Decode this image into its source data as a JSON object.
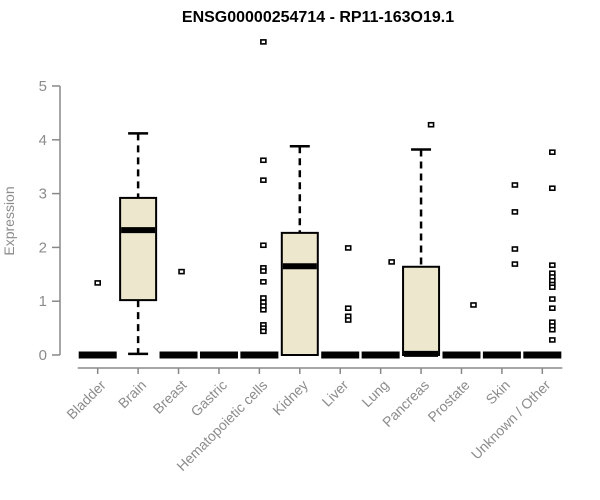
{
  "chart_data": {
    "type": "boxplot",
    "title": "ENSG00000254714 - RP11-163O19.1",
    "ylabel": "Expression",
    "xlabel": "",
    "ylim": [
      0,
      5
    ],
    "yticks": [
      0,
      1,
      2,
      3,
      4,
      5
    ],
    "grid": false,
    "legend": "none",
    "categories": [
      "Bladder",
      "Brain",
      "Breast",
      "Gastric",
      "Hematopoietic cells",
      "Kidney",
      "Liver",
      "Lung",
      "Pancreas",
      "Prostate",
      "Skin",
      "Unknown / Other"
    ],
    "boxes": [
      {
        "category": "Bladder",
        "q1": 0,
        "median": 0,
        "q3": 0,
        "whisker_low": 0,
        "whisker_high": 0,
        "outliers": [
          1.34
        ],
        "outlier_dx": 0
      },
      {
        "category": "Brain",
        "q1": 1.02,
        "median": 2.32,
        "q3": 2.92,
        "whisker_low": 0.02,
        "whisker_high": 4.12,
        "outliers": [],
        "outlier_dx": 0
      },
      {
        "category": "Breast",
        "q1": 0,
        "median": 0,
        "q3": 0,
        "whisker_low": 0,
        "whisker_high": 0,
        "outliers": [
          1.55
        ],
        "outlier_dx": 3
      },
      {
        "category": "Gastric",
        "q1": 0,
        "median": 0,
        "q3": 0,
        "whisker_low": 0,
        "whisker_high": 0,
        "outliers": [],
        "outlier_dx": 0
      },
      {
        "category": "Hematopoietic cells",
        "q1": 0,
        "median": 0,
        "q3": 0,
        "whisker_low": 0,
        "whisker_high": 0,
        "outliers": [
          5.82,
          3.62,
          3.25,
          2.04,
          1.62,
          1.56,
          1.36,
          1.06,
          0.98,
          0.91,
          0.84,
          0.56,
          0.5,
          0.44
        ],
        "outlier_dx": 4
      },
      {
        "category": "Kidney",
        "q1": 0,
        "median": 1.65,
        "q3": 2.27,
        "whisker_low": 0,
        "whisker_high": 3.88,
        "outliers": [],
        "outlier_dx": 0
      },
      {
        "category": "Liver",
        "q1": 0,
        "median": 0,
        "q3": 0,
        "whisker_low": 0,
        "whisker_high": 0,
        "outliers": [
          1.99,
          0.87,
          0.72,
          0.65
        ],
        "outlier_dx": 8
      },
      {
        "category": "Lung",
        "q1": 0,
        "median": 0,
        "q3": 0,
        "whisker_low": 0,
        "whisker_high": 0,
        "outliers": [
          1.73
        ],
        "outlier_dx": 11
      },
      {
        "category": "Pancreas",
        "q1": 0,
        "median": 0.02,
        "q3": 1.64,
        "whisker_low": 0,
        "whisker_high": 3.82,
        "outliers": [
          4.28
        ],
        "outlier_dx": 10
      },
      {
        "category": "Prostate",
        "q1": 0,
        "median": 0,
        "q3": 0,
        "whisker_low": 0,
        "whisker_high": 0,
        "outliers": [
          0.93
        ],
        "outlier_dx": 12
      },
      {
        "category": "Skin",
        "q1": 0,
        "median": 0,
        "q3": 0,
        "whisker_low": 0,
        "whisker_high": 0,
        "outliers": [
          3.16,
          2.66,
          1.97,
          1.69
        ],
        "outlier_dx": 13
      },
      {
        "category": "Unknown / Other",
        "q1": 0,
        "median": 0,
        "q3": 0,
        "whisker_low": 0,
        "whisker_high": 0,
        "outliers": [
          3.77,
          3.1,
          1.67,
          1.52,
          1.45,
          1.38,
          1.31,
          1.26,
          1.04,
          0.87,
          0.61,
          0.54,
          0.47,
          0.28
        ],
        "outlier_dx": 10
      }
    ],
    "style": {
      "box_fill": "#EDE7CD",
      "box_stroke": "#000000",
      "median_color": "#000000",
      "whisker_color": "#000000",
      "outlier_stroke": "#000000",
      "outlier_fill": "#ffffff",
      "axis_color": "#888888",
      "tick_label_color": "#8C8C8C",
      "title_color": "#000000",
      "background": "#ffffff"
    }
  }
}
